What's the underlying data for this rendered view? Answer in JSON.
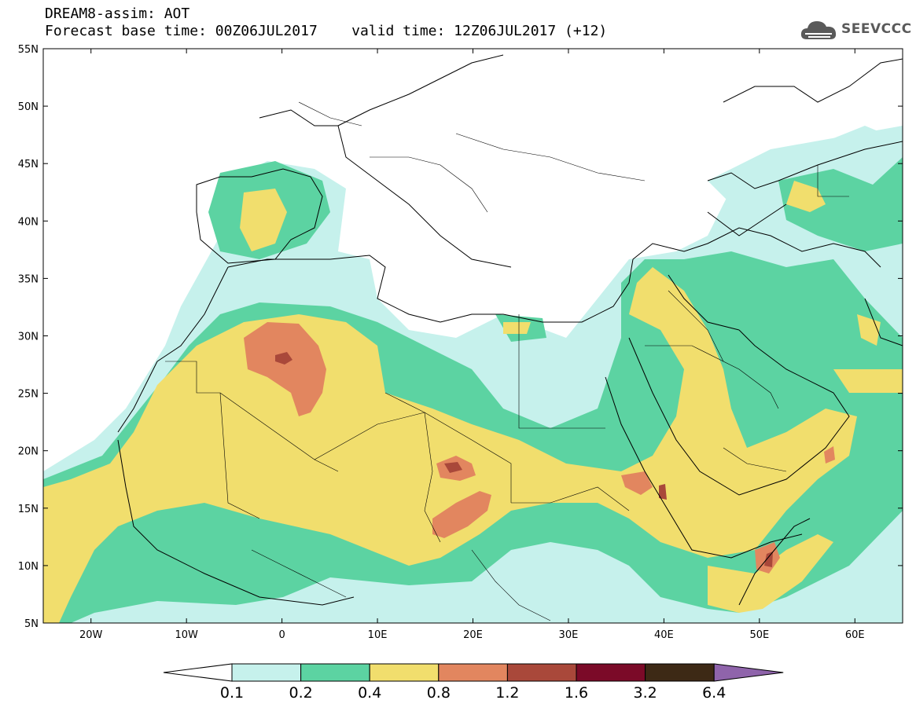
{
  "header": {
    "line1": "DREAM8-assim: AOT",
    "line2": "Forecast base time: 00Z06JUL2017    valid time: 12Z06JUL2017 (+12)"
  },
  "logo": {
    "text": "SEEVCCC",
    "icon": "cloud-icon"
  },
  "map": {
    "projection": "lat-lon",
    "lon_range": [
      -25,
      65
    ],
    "lat_range": [
      5,
      55
    ],
    "lat_ticks": [
      "55N",
      "50N",
      "45N",
      "40N",
      "35N",
      "30N",
      "25N",
      "20N",
      "15N",
      "10N",
      "5N"
    ],
    "lon_ticks": [
      "20W",
      "10W",
      "0",
      "10E",
      "20E",
      "30E",
      "40E",
      "50E",
      "60E"
    ]
  },
  "colorbar": {
    "labels": [
      "0.1",
      "0.2",
      "0.4",
      "0.8",
      "1.2",
      "1.6",
      "3.2",
      "6.4"
    ],
    "colors": [
      "#c6f1ec",
      "#5cd3a2",
      "#f1de6d",
      "#e2865f",
      "#a9483a",
      "#7b0a28",
      "#3d2915",
      "#8f64ab"
    ],
    "under_color": "#ffffff",
    "over_color": "#8f64ab"
  }
}
